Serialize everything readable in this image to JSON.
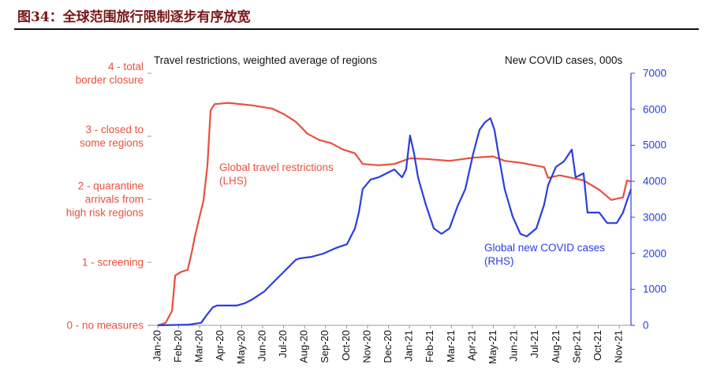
{
  "chart_data": {
    "type": "line",
    "title": "图34：全球范围旅行限制逐步有序放宽",
    "ylabel": "Travel restrictions, weighted average of regions",
    "y2label": "New COVID cases, 000s",
    "annotations": [
      "Global travel restrictions\n(LHS)",
      "Global new COVID cases\n(RHS)"
    ],
    "xlim": [
      -0.3,
      22.56
    ],
    "xticks": [
      {
        "value": 0,
        "label": "Jan-20"
      },
      {
        "value": 1,
        "label": "Feb-20"
      },
      {
        "value": 2,
        "label": "Mar-20"
      },
      {
        "value": 3,
        "label": "Apr-20"
      },
      {
        "value": 4,
        "label": "May-20"
      },
      {
        "value": 5,
        "label": "Jun-20"
      },
      {
        "value": 6,
        "label": "Jul-20"
      },
      {
        "value": 7,
        "label": "Aug-20"
      },
      {
        "value": 8,
        "label": "Sep-20"
      },
      {
        "value": 9,
        "label": "Oct-20"
      },
      {
        "value": 10,
        "label": "Nov-20"
      },
      {
        "value": 11,
        "label": "Dec-20"
      },
      {
        "value": 12,
        "label": "Jan-21"
      },
      {
        "value": 13,
        "label": "Feb-21"
      },
      {
        "value": 14,
        "label": "Mar-21"
      },
      {
        "value": 15,
        "label": "Apr-21"
      },
      {
        "value": 16,
        "label": "May-21"
      },
      {
        "value": 17,
        "label": "Jun-21"
      },
      {
        "value": 18,
        "label": "Jul-21"
      },
      {
        "value": 19,
        "label": "Aug-21"
      },
      {
        "value": 20,
        "label": "Sep-21"
      },
      {
        "value": 21,
        "label": "Oct-21"
      },
      {
        "value": 22,
        "label": "Nov-21"
      }
    ],
    "ylim": [
      0,
      4
    ],
    "yticks": [
      {
        "value": 0,
        "label": "0 - no measures"
      },
      {
        "value": 1,
        "label": "1 - screening"
      },
      {
        "value": 2,
        "label": "2 - quarantine\narrivals from\nhigh risk regions"
      },
      {
        "value": 3,
        "label": "3 - closed to\nsome regions"
      },
      {
        "value": 4,
        "label": "4 - total\nborder closure"
      }
    ],
    "y2lim": [
      0,
      7000
    ],
    "y2ticks": [
      0,
      1000,
      2000,
      3000,
      4000,
      5000,
      6000,
      7000
    ],
    "series": [
      {
        "name": "Global travel restrictions",
        "color": "#e8503e",
        "x": [
          0,
          0.38,
          0.68,
          0.83,
          1.13,
          1.43,
          1.62,
          1.77,
          1.95,
          2.18,
          2.37,
          2.52,
          2.71,
          3.38,
          4.51,
          5.45,
          6.02,
          6.58,
          7.14,
          7.71,
          8.27,
          8.83,
          9.4,
          9.77,
          10.53,
          11.28,
          12.03,
          12.78,
          13.91,
          15.04,
          15.98,
          16.54,
          17.29,
          18.42,
          18.61,
          19.17,
          20.3,
          21.05,
          21.62,
          22.18,
          22.37,
          22.56
        ],
        "values": [
          0,
          0.04,
          0.23,
          0.79,
          0.85,
          0.88,
          1.16,
          1.41,
          1.66,
          1.98,
          2.54,
          3.41,
          3.51,
          3.53,
          3.49,
          3.44,
          3.35,
          3.23,
          3.04,
          2.94,
          2.89,
          2.79,
          2.73,
          2.56,
          2.54,
          2.56,
          2.65,
          2.64,
          2.61,
          2.66,
          2.68,
          2.61,
          2.58,
          2.51,
          2.34,
          2.38,
          2.3,
          2.15,
          1.99,
          2.03,
          2.3,
          2.28
        ]
      },
      {
        "name": "Global new COVID cases",
        "color": "#2b3ee0",
        "axis": "y2",
        "x": [
          0,
          1.5,
          2.07,
          2.33,
          2.63,
          2.82,
          3.76,
          4.14,
          4.51,
          5.08,
          5.45,
          6.02,
          6.58,
          6.77,
          7.33,
          7.89,
          8.46,
          9.02,
          9.4,
          9.59,
          9.77,
          10.15,
          10.53,
          10.9,
          11.28,
          11.65,
          11.84,
          12.03,
          12.22,
          12.41,
          12.78,
          13.16,
          13.53,
          13.91,
          14.29,
          14.66,
          15.04,
          15.34,
          15.6,
          15.86,
          16.05,
          16.24,
          16.54,
          16.92,
          17.29,
          17.59,
          18.05,
          18.42,
          18.61,
          18.98,
          19.36,
          19.74,
          19.92,
          20.3,
          20.49,
          21.05,
          21.43,
          21.88,
          22.18,
          22.37,
          22.56
        ],
        "values": [
          0,
          20,
          70,
          280,
          500,
          550,
          550,
          610,
          720,
          940,
          1160,
          1490,
          1820,
          1860,
          1900,
          1990,
          2140,
          2250,
          2690,
          3130,
          3780,
          4050,
          4110,
          4220,
          4330,
          4110,
          4330,
          5270,
          4770,
          4110,
          3350,
          2690,
          2540,
          2690,
          3300,
          3780,
          4770,
          5430,
          5640,
          5750,
          5430,
          4770,
          3780,
          3020,
          2540,
          2470,
          2690,
          3350,
          3890,
          4400,
          4550,
          4880,
          4110,
          4220,
          3130,
          3130,
          2840,
          2840,
          3130,
          3460,
          3780
        ]
      }
    ]
  }
}
